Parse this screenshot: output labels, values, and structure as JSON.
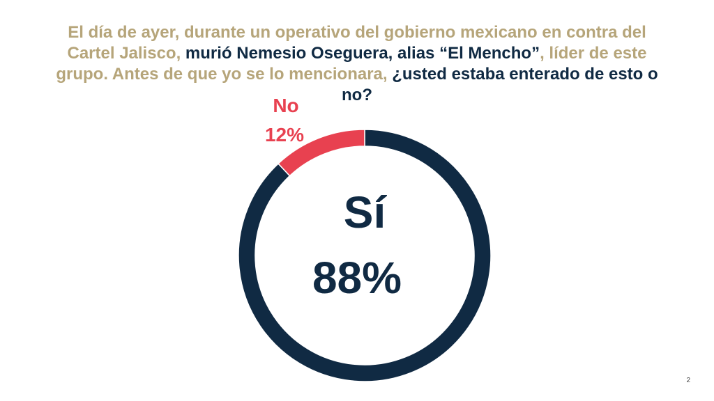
{
  "question": {
    "part1": "El día de ayer, durante un operativo del gobierno mexicano en contra del Cartel Jalisco,",
    "part2": " murió Nemesio Oseguera, alias “El Mencho”",
    "part3": ", líder de este grupo. Antes de que yo se lo mencionara,",
    "part4": " ¿usted estaba enterado de esto o no?"
  },
  "colors": {
    "gold": "#b6a57a",
    "navy": "#102a43",
    "red": "#e84150"
  },
  "chart_data": {
    "type": "pie",
    "style": "donut",
    "slices": [
      {
        "label": "Sí",
        "value": 88,
        "value_label": "88%",
        "color": "#102a43"
      },
      {
        "label": "No",
        "value": 12,
        "value_label": "12%",
        "color": "#e84150"
      }
    ]
  },
  "page_number": "2"
}
